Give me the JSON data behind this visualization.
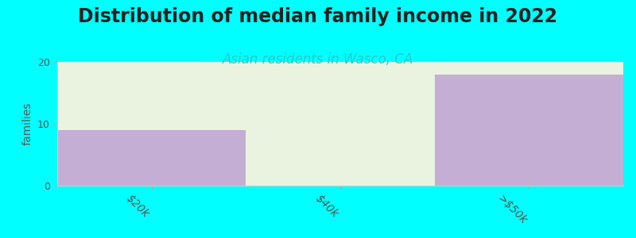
{
  "title": "Distribution of median family income in 2022",
  "subtitle": "Asian residents in Wasco, CA",
  "categories": [
    "$20k",
    "$40k",
    ">$50k"
  ],
  "values": [
    9,
    0,
    18
  ],
  "max_values": [
    20,
    20,
    20
  ],
  "bar_color": "#c4aed4",
  "bg_bar_color": "#eaf2e0",
  "background_color": "#00FFFF",
  "plot_bg_color": "#FFFFFF",
  "title_fontsize": 17,
  "subtitle_fontsize": 12,
  "subtitle_color": "#22CCCC",
  "ylabel": "families",
  "ylim": [
    0,
    20
  ],
  "yticks": [
    0,
    10,
    20
  ]
}
